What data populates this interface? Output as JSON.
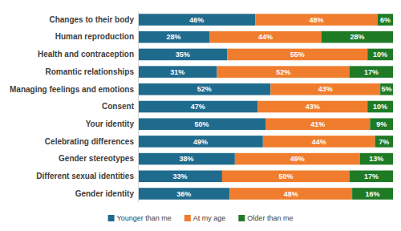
{
  "chart_data": {
    "type": "bar",
    "orientation": "horizontal",
    "stacked": true,
    "data_labels": true,
    "tick_labels": "y",
    "legend": "bottom",
    "categories": [
      "Changes to their body",
      "Human reproduction",
      "Health and contraception",
      "Romantic relationships",
      "Managing feelings and emotions",
      "Consent",
      "Your identity",
      "Celebrating differences",
      "Gender stereotypes",
      "Different sexual identities",
      "Gender identity"
    ],
    "xlim": [
      0,
      100
    ],
    "series": [
      {
        "name": "Younger than me",
        "color": "#1f6b8e",
        "values": [
          46,
          28,
          35,
          31,
          52,
          47,
          50,
          49,
          38,
          33,
          36
        ],
        "value_labels": [
          "46%",
          "28%",
          "35%",
          "31%",
          "52%",
          "47%",
          "50%",
          "49%",
          "38%",
          "33%",
          "36%"
        ]
      },
      {
        "name": "At my age",
        "color": "#f07d2d",
        "values": [
          48,
          44,
          55,
          52,
          43,
          43,
          41,
          44,
          49,
          50,
          48
        ],
        "value_labels": [
          "48%",
          "44%",
          "55%",
          "52%",
          "43%",
          "43%",
          "41%",
          "44%",
          "49%",
          "50%",
          "48%"
        ]
      },
      {
        "name": "Older than me",
        "color": "#1f7a26",
        "values": [
          6,
          28,
          10,
          17,
          5,
          10,
          9,
          7,
          13,
          17,
          16
        ],
        "value_labels": [
          "6%",
          "28%",
          "10%",
          "17%",
          "5%",
          "10%",
          "9%",
          "7%",
          "13%",
          "17%",
          "16%"
        ]
      }
    ]
  }
}
